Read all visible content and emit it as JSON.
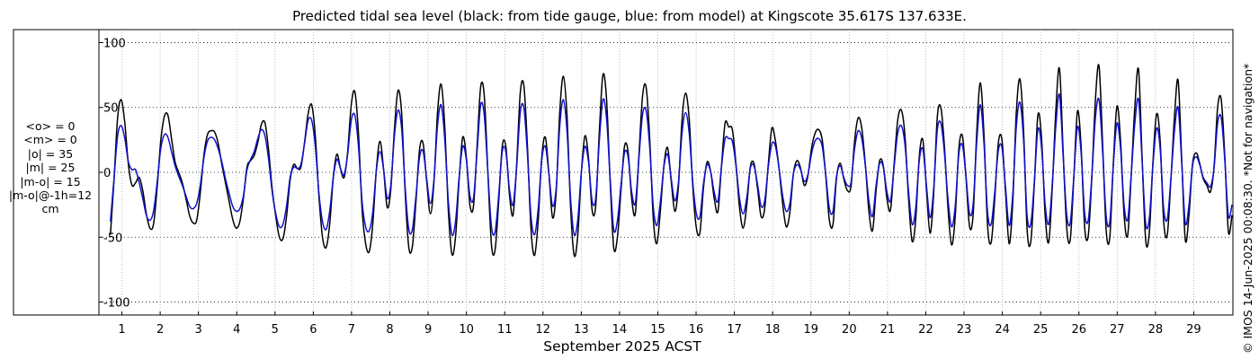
{
  "chart_data": {
    "type": "line",
    "title": "Predicted tidal sea level (black: from tide gauge, blue: from model) at Kingscote 35.617S 137.633E.",
    "xlabel": "September 2025 ACST",
    "ylabel": "",
    "ylim": [
      -110,
      110
    ],
    "xlim": [
      0.4,
      30.0
    ],
    "yticks": [
      -100,
      -50,
      0,
      50,
      100
    ],
    "xticks": [
      1,
      2,
      3,
      4,
      5,
      6,
      7,
      8,
      9,
      10,
      11,
      12,
      13,
      14,
      15,
      16,
      17,
      18,
      19,
      20,
      21,
      22,
      23,
      24,
      25,
      26,
      27,
      28,
      29
    ],
    "grid": true,
    "legend": "none",
    "units": "cm",
    "x_start": 0.7,
    "x_end": 30.0,
    "samples_per_day": 24,
    "series": [
      {
        "color": "#000000",
        "values": [
          -48,
          -6,
          42,
          56,
          38,
          6,
          -10,
          -8,
          -4,
          -14,
          -32,
          -43,
          -40,
          -12,
          24,
          43,
          44,
          26,
          8,
          0,
          -8,
          -20,
          -33,
          -39,
          -37,
          -16,
          13,
          29,
          32,
          31,
          22,
          6,
          -8,
          -22,
          -36,
          -43,
          -38,
          -20,
          4,
          9,
          13,
          23,
          37,
          38,
          17,
          -13,
          -34,
          -50,
          -51,
          -34,
          -6,
          6,
          3,
          4,
          23,
          45,
          52,
          28,
          -18,
          -50,
          -58,
          -40,
          -4,
          14,
          3,
          -4,
          16,
          52,
          62,
          30,
          -28,
          -55,
          -61,
          -39,
          3,
          24,
          2,
          -27,
          -13,
          33,
          63,
          46,
          -16,
          -58,
          -57,
          -22,
          18,
          22,
          -8,
          -32,
          -8,
          46,
          68,
          36,
          -29,
          -63,
          -50,
          -6,
          27,
          12,
          -25,
          -26,
          20,
          66,
          59,
          0,
          -56,
          -60,
          -23,
          20,
          20,
          -17,
          -33,
          6,
          61,
          67,
          20,
          -44,
          -64,
          -37,
          12,
          27,
          -2,
          -35,
          -15,
          47,
          74,
          44,
          -27,
          -64,
          -49,
          -1,
          28,
          11,
          -29,
          -26,
          31,
          75,
          57,
          -6,
          -58,
          -51,
          -15,
          20,
          16,
          -20,
          -32,
          12,
          58,
          66,
          27,
          -35,
          -55,
          -29,
          6,
          19,
          -7,
          -30,
          -11,
          40,
          61,
          41,
          -11,
          -43,
          -46,
          -11,
          8,
          0,
          -21,
          -30,
          6,
          38,
          35,
          33,
          7,
          -27,
          -43,
          -26,
          4,
          7,
          -12,
          -34,
          -28,
          6,
          34,
          24,
          3,
          -24,
          -42,
          -31,
          -1,
          9,
          3,
          -10,
          -3,
          18,
          30,
          33,
          25,
          -3,
          -37,
          -40,
          -4,
          7,
          -5,
          -14,
          -11,
          24,
          42,
          34,
          6,
          -30,
          -45,
          -14,
          9,
          5,
          -20,
          -29,
          6,
          40,
          48,
          29,
          -19,
          -53,
          -37,
          12,
          25,
          -13,
          -47,
          -17,
          42,
          50,
          20,
          -28,
          -56,
          -34,
          18,
          28,
          -4,
          -42,
          -32,
          32,
          69,
          29,
          -41,
          -54,
          -20,
          23,
          25,
          -16,
          -55,
          -23,
          46,
          72,
          34,
          -44,
          -54,
          -10,
          44,
          27,
          -32,
          -54,
          -12,
          48,
          80,
          18,
          -42,
          -52,
          -4,
          47,
          21,
          -42,
          -49,
          -4,
          56,
          82,
          22,
          -45,
          -50,
          8,
          51,
          24,
          -34,
          -48,
          0,
          52,
          79,
          10,
          -53,
          -46,
          8,
          45,
          25,
          -38,
          -48,
          -6,
          43,
          71,
          11,
          -52,
          -34,
          6,
          15,
          7,
          -5,
          -10,
          -15,
          4,
          50,
          56,
          12,
          -46,
          -33
        ]
      },
      {
        "color": "#1010cc",
        "values": [
          -38,
          -5,
          28,
          36,
          26,
          8,
          2,
          2,
          -8,
          -20,
          -33,
          -37,
          -30,
          -8,
          18,
          29,
          27,
          16,
          5,
          -3,
          -10,
          -18,
          -26,
          -28,
          -24,
          -10,
          11,
          24,
          27,
          25,
          18,
          8,
          -5,
          -16,
          -26,
          -30,
          -28,
          -18,
          2,
          10,
          16,
          26,
          33,
          28,
          10,
          -15,
          -32,
          -42,
          -40,
          -26,
          -4,
          4,
          3,
          6,
          22,
          40,
          40,
          20,
          -16,
          -38,
          -44,
          -30,
          -4,
          10,
          3,
          -2,
          14,
          40,
          44,
          20,
          -22,
          -42,
          -45,
          -30,
          2,
          16,
          2,
          -20,
          -10,
          28,
          48,
          34,
          -12,
          -44,
          -44,
          -18,
          12,
          16,
          -6,
          -24,
          -6,
          36,
          52,
          26,
          -22,
          -48,
          -38,
          -4,
          20,
          10,
          -18,
          -20,
          16,
          52,
          44,
          0,
          -42,
          -46,
          -18,
          16,
          16,
          -13,
          -25,
          4,
          46,
          50,
          14,
          -34,
          -48,
          -28,
          10,
          20,
          -2,
          -26,
          -12,
          36,
          56,
          32,
          -20,
          -48,
          -37,
          0,
          20,
          8,
          -22,
          -20,
          24,
          56,
          42,
          -4,
          -44,
          -38,
          -11,
          15,
          12,
          -15,
          -24,
          10,
          44,
          48,
          20,
          -26,
          -41,
          -22,
          5,
          14,
          -5,
          -22,
          -8,
          30,
          46,
          30,
          -8,
          -32,
          -34,
          -8,
          6,
          0,
          -16,
          -22,
          5,
          26,
          26,
          24,
          6,
          -20,
          -32,
          -20,
          3,
          5,
          -9,
          -26,
          -22,
          4,
          22,
          20,
          3,
          -18,
          -30,
          -24,
          -1,
          6,
          2,
          -7,
          -2,
          14,
          24,
          26,
          20,
          -2,
          -28,
          -30,
          -3,
          5,
          -4,
          -10,
          -8,
          18,
          32,
          26,
          5,
          -22,
          -34,
          -10,
          7,
          4,
          -15,
          -22,
          4,
          30,
          36,
          22,
          -14,
          -40,
          -28,
          9,
          18,
          -10,
          -35,
          -13,
          32,
          38,
          15,
          -21,
          -42,
          -26,
          14,
          21,
          -3,
          -32,
          -24,
          24,
          52,
          22,
          -31,
          -40,
          -15,
          17,
          19,
          -12,
          -41,
          -17,
          35,
          54,
          26,
          -33,
          -40,
          -8,
          33,
          20,
          -24,
          -40,
          -9,
          36,
          60,
          14,
          -32,
          -39,
          -3,
          35,
          16,
          -31,
          -37,
          -3,
          42,
          56,
          16,
          -34,
          -38,
          6,
          38,
          18,
          -26,
          -36,
          0,
          39,
          56,
          8,
          -40,
          -35,
          6,
          34,
          19,
          -28,
          -36,
          -5,
          32,
          50,
          8,
          -39,
          -26,
          5,
          12,
          6,
          -4,
          -8,
          -11,
          3,
          38,
          42,
          9,
          -34,
          -25
        ]
      }
    ]
  },
  "stats": [
    "<o> = 0",
    "<m> = 0",
    "|o| = 35",
    "|m| = 25",
    "|m-o| = 15",
    "|m-o|@-1h=12",
    "cm"
  ],
  "watermark": "© IMOS 14-Jun-2025 00:08:30. *Not for navigation*"
}
